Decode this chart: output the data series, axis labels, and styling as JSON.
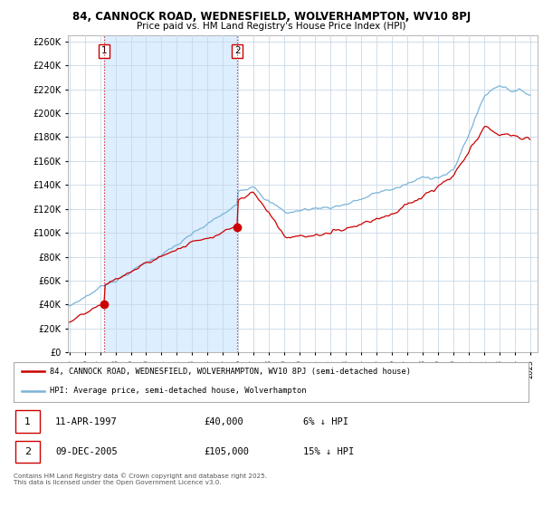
{
  "title_line1": "84, CANNOCK ROAD, WEDNESFIELD, WOLVERHAMPTON, WV10 8PJ",
  "title_line2": "Price paid vs. HM Land Registry's House Price Index (HPI)",
  "hpi_color": "#7ab4d8",
  "price_color": "#cc0000",
  "shade_color": "#ddeeff",
  "background_color": "#ffffff",
  "grid_color": "#c8d8e8",
  "ylim": [
    0,
    265000
  ],
  "yticks": [
    0,
    20000,
    40000,
    60000,
    80000,
    100000,
    120000,
    140000,
    160000,
    180000,
    200000,
    220000,
    240000,
    260000
  ],
  "sale1_year": 1997.27,
  "sale1_price": 40000,
  "sale1_label": "1",
  "sale2_year": 2005.93,
  "sale2_price": 105000,
  "sale2_label": "2",
  "legend_line1": "84, CANNOCK ROAD, WEDNESFIELD, WOLVERHAMPTON, WV10 8PJ (semi-detached house)",
  "legend_line2": "HPI: Average price, semi-detached house, Wolverhampton",
  "table_row1": [
    "1",
    "11-APR-1997",
    "£40,000",
    "6% ↓ HPI"
  ],
  "table_row2": [
    "2",
    "09-DEC-2005",
    "£105,000",
    "15% ↓ HPI"
  ],
  "footnote": "Contains HM Land Registry data © Crown copyright and database right 2025.\nThis data is licensed under the Open Government Licence v3.0."
}
